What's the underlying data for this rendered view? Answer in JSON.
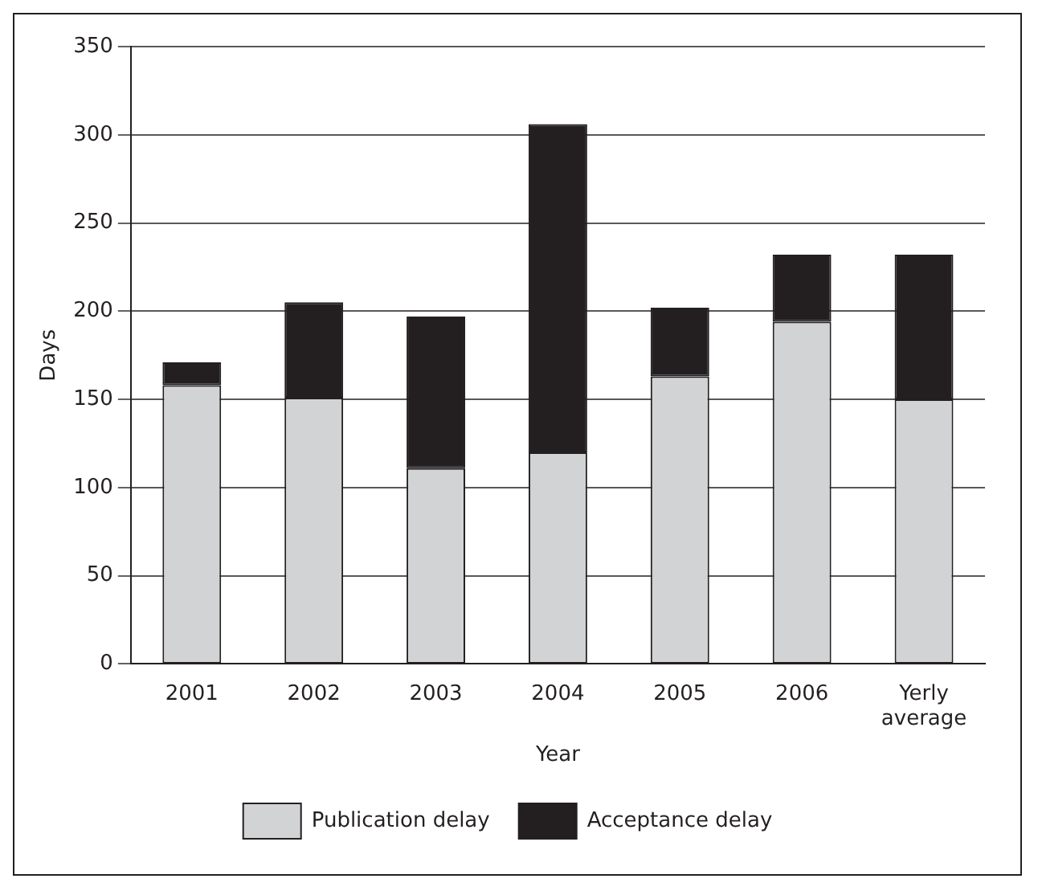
{
  "chart_data": {
    "type": "bar",
    "stacked": true,
    "xlabel": "Year",
    "ylabel": "Days",
    "categories": [
      "2001",
      "2002",
      "2003",
      "2004",
      "2005",
      "2006",
      "Yerly average"
    ],
    "series": [
      {
        "name": "Publication delay",
        "color": "#d1d3d4",
        "values": [
          158,
          151,
          111,
          120,
          163,
          194,
          150
        ]
      },
      {
        "name": "Acceptance delay",
        "color": "#231f20",
        "values": [
          13,
          54,
          86,
          186,
          39,
          38,
          82
        ]
      }
    ],
    "ylim": [
      0,
      350
    ],
    "yticks": [
      0,
      50,
      100,
      150,
      200,
      250,
      300,
      350
    ],
    "grid": "y",
    "legend": "bottom"
  }
}
